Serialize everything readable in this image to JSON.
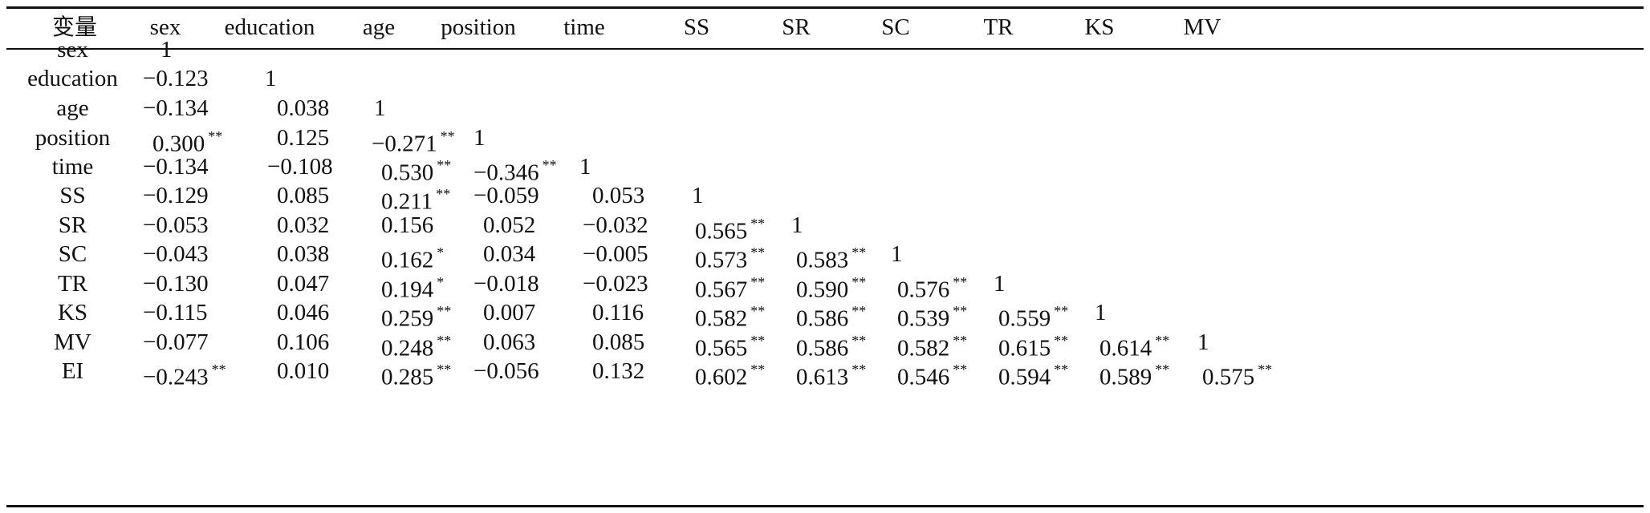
{
  "table": {
    "corner_header": "变量",
    "columns": [
      "sex",
      "education",
      "age",
      "position",
      "time",
      "SS",
      "SR",
      "SC",
      "TR",
      "KS",
      "MV"
    ],
    "rows": [
      {
        "label": "sex",
        "cells": [
          {
            "v": "1",
            "sig": ""
          }
        ]
      },
      {
        "label": "education",
        "cells": [
          {
            "v": "-0.123",
            "sig": ""
          },
          {
            "v": "1",
            "sig": ""
          }
        ]
      },
      {
        "label": "age",
        "cells": [
          {
            "v": "-0.134",
            "sig": ""
          },
          {
            "v": "0.038",
            "sig": ""
          },
          {
            "v": "1",
            "sig": ""
          }
        ]
      },
      {
        "label": "position",
        "cells": [
          {
            "v": "0.300",
            "sig": "**"
          },
          {
            "v": "0.125",
            "sig": ""
          },
          {
            "v": "-0.271",
            "sig": "**"
          },
          {
            "v": "1",
            "sig": ""
          }
        ]
      },
      {
        "label": "time",
        "cells": [
          {
            "v": "-0.134",
            "sig": ""
          },
          {
            "v": "-0.108",
            "sig": ""
          },
          {
            "v": "0.530",
            "sig": "**"
          },
          {
            "v": "-0.346",
            "sig": "**"
          },
          {
            "v": "1",
            "sig": ""
          }
        ]
      },
      {
        "label": "SS",
        "cells": [
          {
            "v": "-0.129",
            "sig": ""
          },
          {
            "v": "0.085",
            "sig": ""
          },
          {
            "v": "0.211",
            "sig": "**"
          },
          {
            "v": "-0.059",
            "sig": ""
          },
          {
            "v": "0.053",
            "sig": ""
          },
          {
            "v": "1",
            "sig": ""
          }
        ]
      },
      {
        "label": "SR",
        "cells": [
          {
            "v": "-0.053",
            "sig": ""
          },
          {
            "v": "0.032",
            "sig": ""
          },
          {
            "v": "0.156",
            "sig": ""
          },
          {
            "v": "0.052",
            "sig": ""
          },
          {
            "v": "-0.032",
            "sig": ""
          },
          {
            "v": "0.565",
            "sig": "**"
          },
          {
            "v": "1",
            "sig": ""
          }
        ]
      },
      {
        "label": "SC",
        "cells": [
          {
            "v": "-0.043",
            "sig": ""
          },
          {
            "v": "0.038",
            "sig": ""
          },
          {
            "v": "0.162",
            "sig": "*"
          },
          {
            "v": "0.034",
            "sig": ""
          },
          {
            "v": "-0.005",
            "sig": ""
          },
          {
            "v": "0.573",
            "sig": "**"
          },
          {
            "v": "0.583",
            "sig": "**"
          },
          {
            "v": "1",
            "sig": ""
          }
        ]
      },
      {
        "label": "TR",
        "cells": [
          {
            "v": "-0.130",
            "sig": ""
          },
          {
            "v": "0.047",
            "sig": ""
          },
          {
            "v": "0.194",
            "sig": "*"
          },
          {
            "v": "-0.018",
            "sig": ""
          },
          {
            "v": "-0.023",
            "sig": ""
          },
          {
            "v": "0.567",
            "sig": "**"
          },
          {
            "v": "0.590",
            "sig": "**"
          },
          {
            "v": "0.576",
            "sig": "**"
          },
          {
            "v": "1",
            "sig": ""
          }
        ]
      },
      {
        "label": "KS",
        "cells": [
          {
            "v": "-0.115",
            "sig": ""
          },
          {
            "v": "0.046",
            "sig": ""
          },
          {
            "v": "0.259",
            "sig": "**"
          },
          {
            "v": "0.007",
            "sig": ""
          },
          {
            "v": "0.116",
            "sig": ""
          },
          {
            "v": "0.582",
            "sig": "**"
          },
          {
            "v": "0.586",
            "sig": "**"
          },
          {
            "v": "0.539",
            "sig": "**"
          },
          {
            "v": "0.559",
            "sig": "**"
          },
          {
            "v": "1",
            "sig": ""
          }
        ]
      },
      {
        "label": "MV",
        "cells": [
          {
            "v": "-0.077",
            "sig": ""
          },
          {
            "v": "0.106",
            "sig": ""
          },
          {
            "v": "0.248",
            "sig": "**"
          },
          {
            "v": "0.063",
            "sig": ""
          },
          {
            "v": "0.085",
            "sig": ""
          },
          {
            "v": "0.565",
            "sig": "**"
          },
          {
            "v": "0.586",
            "sig": "**"
          },
          {
            "v": "0.582",
            "sig": "**"
          },
          {
            "v": "0.615",
            "sig": "**"
          },
          {
            "v": "0.614",
            "sig": "**"
          },
          {
            "v": "1",
            "sig": ""
          }
        ]
      },
      {
        "label": "EI",
        "cells": [
          {
            "v": "-0.243",
            "sig": "**"
          },
          {
            "v": "0.010",
            "sig": ""
          },
          {
            "v": "0.285",
            "sig": "**"
          },
          {
            "v": "-0.056",
            "sig": ""
          },
          {
            "v": "0.132",
            "sig": ""
          },
          {
            "v": "0.602",
            "sig": "**"
          },
          {
            "v": "0.613",
            "sig": "**"
          },
          {
            "v": "0.546",
            "sig": "**"
          },
          {
            "v": "0.594",
            "sig": "**"
          },
          {
            "v": "0.589",
            "sig": "**"
          },
          {
            "v": "0.575",
            "sig": "**"
          }
        ]
      }
    ]
  }
}
